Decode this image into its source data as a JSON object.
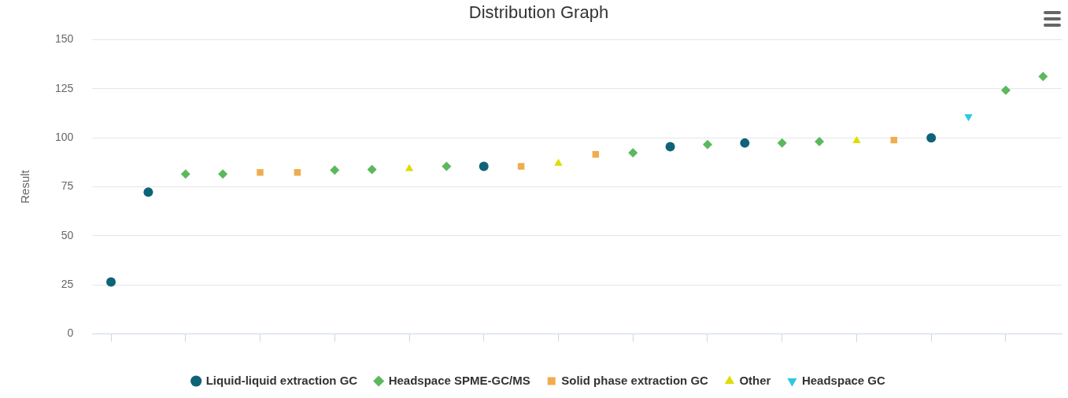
{
  "chart_data": {
    "type": "scatter",
    "title": "Distribution Graph",
    "ylabel": "Result",
    "categories": [
      null,
      null,
      null,
      null,
      null,
      null,
      null,
      null,
      null,
      null,
      null,
      null,
      null,
      null,
      null,
      null,
      null,
      null,
      null,
      null,
      null,
      null,
      null,
      null,
      null,
      null
    ],
    "ylim": [
      0,
      150
    ],
    "yticks": [
      0,
      25,
      50,
      75,
      100,
      125,
      150
    ],
    "grid": "y",
    "legend": "bottom",
    "series": [
      {
        "name": "Liquid-liquid extraction GC",
        "color": "#0f6378",
        "marker": "circle",
        "values": [
          26.5,
          72.3,
          null,
          null,
          null,
          null,
          null,
          null,
          null,
          null,
          85.4,
          null,
          null,
          null,
          null,
          95.4,
          null,
          97.3,
          null,
          null,
          null,
          null,
          100,
          null,
          null,
          null
        ]
      },
      {
        "name": "Headspace SPME-GC/MS",
        "color": "#5cb85c",
        "marker": "diamond",
        "values": [
          null,
          null,
          81.5,
          81.5,
          null,
          null,
          83.5,
          83.8,
          null,
          85.4,
          null,
          null,
          null,
          null,
          92.3,
          null,
          96.5,
          null,
          97.3,
          98,
          null,
          null,
          null,
          null,
          124.2,
          131.2
        ]
      },
      {
        "name": "Solid phase extraction GC",
        "color": "#f0ad4e",
        "marker": "square",
        "values": [
          null,
          null,
          null,
          null,
          82.3,
          82.3,
          null,
          null,
          null,
          null,
          null,
          85.4,
          null,
          91.5,
          null,
          null,
          null,
          null,
          null,
          null,
          null,
          98.8,
          null,
          null,
          null,
          null
        ]
      },
      {
        "name": "Other",
        "color": "#dddd00",
        "marker": "triangle",
        "values": [
          null,
          null,
          null,
          null,
          null,
          null,
          null,
          null,
          84.2,
          null,
          null,
          null,
          86.9,
          null,
          null,
          null,
          null,
          null,
          null,
          null,
          98.5,
          null,
          null,
          null,
          null,
          null
        ]
      },
      {
        "name": "Headspace GC",
        "color": "#2ac9e2",
        "marker": "triangle-down",
        "values": [
          null,
          null,
          null,
          null,
          null,
          null,
          null,
          null,
          null,
          null,
          null,
          null,
          null,
          null,
          null,
          null,
          null,
          null,
          null,
          null,
          null,
          null,
          null,
          110.8,
          null,
          null
        ]
      }
    ]
  }
}
